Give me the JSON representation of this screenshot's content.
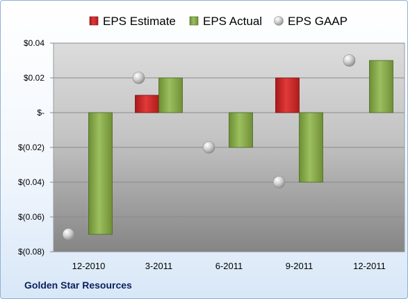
{
  "company": "Golden Star Resources",
  "colors": {
    "estimate": "#d42a2a",
    "actual": "#8db052",
    "gaap": "#b8b8b8"
  },
  "chart_data": {
    "type": "bar",
    "categories": [
      "12-2010",
      "3-2011",
      "6-2011",
      "9-2011",
      "12-2011"
    ],
    "series": [
      {
        "name": "EPS Estimate",
        "kind": "bar",
        "values": [
          null,
          0.01,
          null,
          0.02,
          null
        ]
      },
      {
        "name": "EPS Actual",
        "kind": "bar",
        "values": [
          -0.07,
          0.02,
          -0.02,
          -0.04,
          0.03
        ]
      },
      {
        "name": "EPS GAAP",
        "kind": "marker",
        "values": [
          -0.07,
          0.02,
          -0.02,
          -0.04,
          0.03
        ]
      }
    ],
    "yticks": [
      "$0.04",
      "$0.02",
      "$-",
      "$(0.02)",
      "$(0.04)",
      "$(0.06)",
      "$(0.08)"
    ],
    "ytick_values": [
      0.04,
      0.02,
      0,
      -0.02,
      -0.04,
      -0.06,
      -0.08
    ],
    "ylim": [
      -0.08,
      0.04
    ],
    "grid": true,
    "legend_position": "top"
  }
}
